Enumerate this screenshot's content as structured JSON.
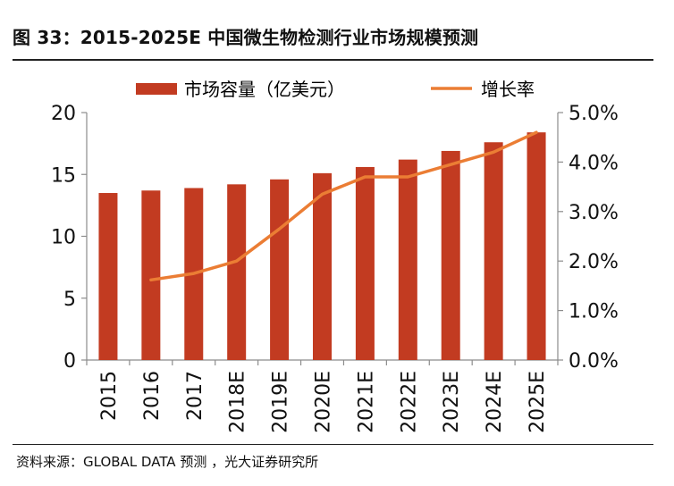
{
  "figure": {
    "title": "图 33：2015-2025E 中国微生物检测行业市场规模预测",
    "source": "资料来源：GLOBAL DATA 预测 ，光大证券研究所"
  },
  "colors": {
    "bar": "#C23B21",
    "line": "#EB7D34",
    "axis": "#8C8C8C",
    "text": "#111111"
  },
  "chart_data": {
    "type": "bar",
    "title": "2015-2025E 中国微生物检测行业市场规模预测",
    "categories": [
      "2015",
      "2016",
      "2017",
      "2018E",
      "2019E",
      "2020E",
      "2021E",
      "2022E",
      "2023E",
      "2024E",
      "2025E"
    ],
    "series": [
      {
        "name": "市场容量（亿美元）",
        "type": "bar",
        "axis": "left",
        "values": [
          13.5,
          13.7,
          13.9,
          14.2,
          14.6,
          15.1,
          15.6,
          16.2,
          16.9,
          17.6,
          18.4
        ]
      },
      {
        "name": "增长率",
        "type": "line",
        "axis": "right",
        "values": [
          null,
          1.62,
          1.75,
          2.0,
          2.65,
          3.35,
          3.7,
          3.7,
          3.95,
          4.2,
          4.6
        ]
      }
    ],
    "left_axis": {
      "min": 0,
      "max": 20,
      "step": 5,
      "ticks": [
        "0",
        "5",
        "10",
        "15",
        "20"
      ]
    },
    "right_axis": {
      "min": 0,
      "max": 5,
      "step": 1,
      "ticks": [
        "0.0%",
        "1.0%",
        "2.0%",
        "3.0%",
        "4.0%",
        "5.0%"
      ]
    },
    "xlabel": "",
    "ylabel": "",
    "legend_position": "top",
    "grid": false
  }
}
